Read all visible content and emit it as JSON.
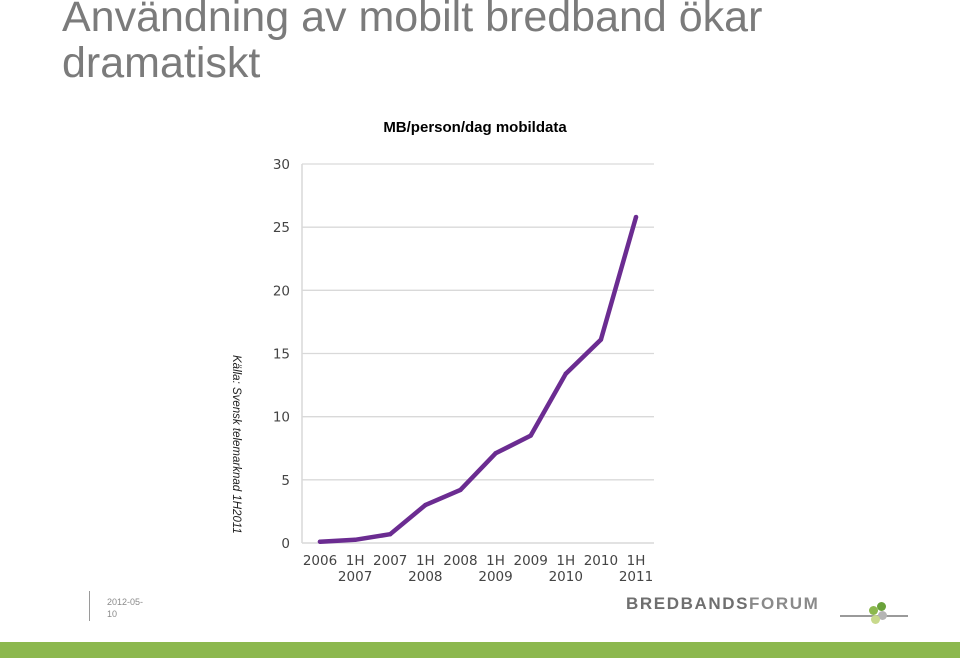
{
  "slide": {
    "title": "Användning av mobilt bredband ökar dramatiskt",
    "source_note": "Källa: Svensk telemarknad 1H2011",
    "footer_date": "2012-05-10",
    "brand_part1": "BREDBANDS",
    "brand_part2": "FORUM",
    "colors": {
      "title_gray": "#7b7b7b",
      "bottom_bar_green": "#8cb84e",
      "line_purple": "#6b2c91",
      "grid": "#d9d9d9"
    }
  },
  "chart_data": {
    "type": "line",
    "title": "MB/person/dag mobildata",
    "xlabel": "",
    "ylabel": "",
    "ylim": [
      0,
      30
    ],
    "yticks": [
      0,
      5,
      10,
      15,
      20,
      25,
      30
    ],
    "grid": true,
    "legend": "none",
    "categories": [
      [
        "2006"
      ],
      [
        "1H",
        "2007"
      ],
      [
        "2007"
      ],
      [
        "1H",
        "2008"
      ],
      [
        "2008"
      ],
      [
        "1H",
        "2009"
      ],
      [
        "2009"
      ],
      [
        "1H",
        "2010"
      ],
      [
        "2010"
      ],
      [
        "1H",
        "2011"
      ]
    ],
    "series": [
      {
        "values": [
          0.1,
          0.25,
          0.7,
          3.0,
          4.2,
          7.1,
          8.5,
          13.4,
          16.1,
          25.8
        ]
      }
    ]
  }
}
